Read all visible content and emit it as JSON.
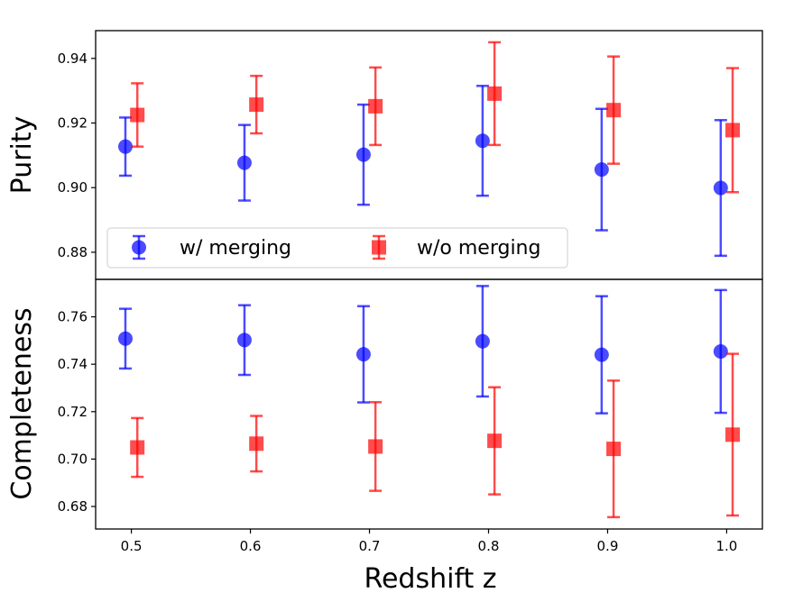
{
  "chart_data": [
    {
      "type": "scatter",
      "panel": "top",
      "title": "",
      "xlabel": "",
      "ylabel": "Purity",
      "xlim": [
        0.47,
        1.03
      ],
      "ylim": [
        0.8716,
        0.9486
      ],
      "yticks": [
        0.88,
        0.9,
        0.92,
        0.94
      ],
      "ytick_labels": [
        "0.88",
        "0.90",
        "0.92",
        "0.94"
      ],
      "legend": {
        "placement": "lower-left",
        "entries": [
          "w/ merging",
          "w/o merging"
        ]
      },
      "series": [
        {
          "name": "w/ merging",
          "color": "#0000ff",
          "marker": "circle",
          "x": [
            0.495,
            0.595,
            0.695,
            0.795,
            0.895,
            0.995
          ],
          "y": [
            0.9127,
            0.9077,
            0.9102,
            0.9145,
            0.9056,
            0.8999
          ],
          "err_low": [
            0.009,
            0.0117,
            0.0155,
            0.017,
            0.0188,
            0.021
          ],
          "err_high": [
            0.009,
            0.0117,
            0.0155,
            0.017,
            0.0188,
            0.021
          ]
        },
        {
          "name": "w/o merging",
          "color": "#ff0000",
          "marker": "square",
          "x": [
            0.505,
            0.605,
            0.705,
            0.805,
            0.905,
            1.005
          ],
          "y": [
            0.9225,
            0.9257,
            0.9252,
            0.9291,
            0.924,
            0.9178
          ],
          "err_low": [
            0.0098,
            0.0089,
            0.012,
            0.0159,
            0.0166,
            0.0192
          ],
          "err_high": [
            0.0098,
            0.0089,
            0.012,
            0.0159,
            0.0166,
            0.0192
          ]
        }
      ]
    },
    {
      "type": "scatter",
      "panel": "bottom",
      "title": "",
      "xlabel": "Redshift z",
      "ylabel": "Completeness",
      "xlim": [
        0.47,
        1.03
      ],
      "ylim": [
        0.6705,
        0.7758
      ],
      "yticks": [
        0.68,
        0.7,
        0.72,
        0.74,
        0.76
      ],
      "ytick_labels": [
        "0.68",
        "0.70",
        "0.72",
        "0.74",
        "0.76"
      ],
      "xticks": [
        0.5,
        0.6,
        0.7,
        0.8,
        0.9,
        1.0
      ],
      "xtick_labels": [
        "0.5",
        "0.6",
        "0.7",
        "0.8",
        "0.9",
        "1.0"
      ],
      "series": [
        {
          "name": "w/ merging",
          "color": "#0000ff",
          "marker": "circle",
          "x": [
            0.495,
            0.595,
            0.695,
            0.795,
            0.895,
            0.995
          ],
          "y": [
            0.7508,
            0.7502,
            0.7442,
            0.7497,
            0.744,
            0.7454
          ],
          "err_low": [
            0.0126,
            0.0147,
            0.0203,
            0.0233,
            0.0247,
            0.0259
          ],
          "err_high": [
            0.0126,
            0.0147,
            0.0203,
            0.0233,
            0.0247,
            0.0259
          ]
        },
        {
          "name": "w/o merging",
          "color": "#ff0000",
          "marker": "square",
          "x": [
            0.505,
            0.605,
            0.705,
            0.805,
            0.905,
            1.005
          ],
          "y": [
            0.7049,
            0.7065,
            0.7053,
            0.7077,
            0.7043,
            0.7103
          ],
          "err_low": [
            0.0124,
            0.0117,
            0.0187,
            0.0226,
            0.0288,
            0.0341
          ],
          "err_high": [
            0.0124,
            0.0117,
            0.0187,
            0.0226,
            0.0288,
            0.0341
          ]
        }
      ]
    }
  ]
}
